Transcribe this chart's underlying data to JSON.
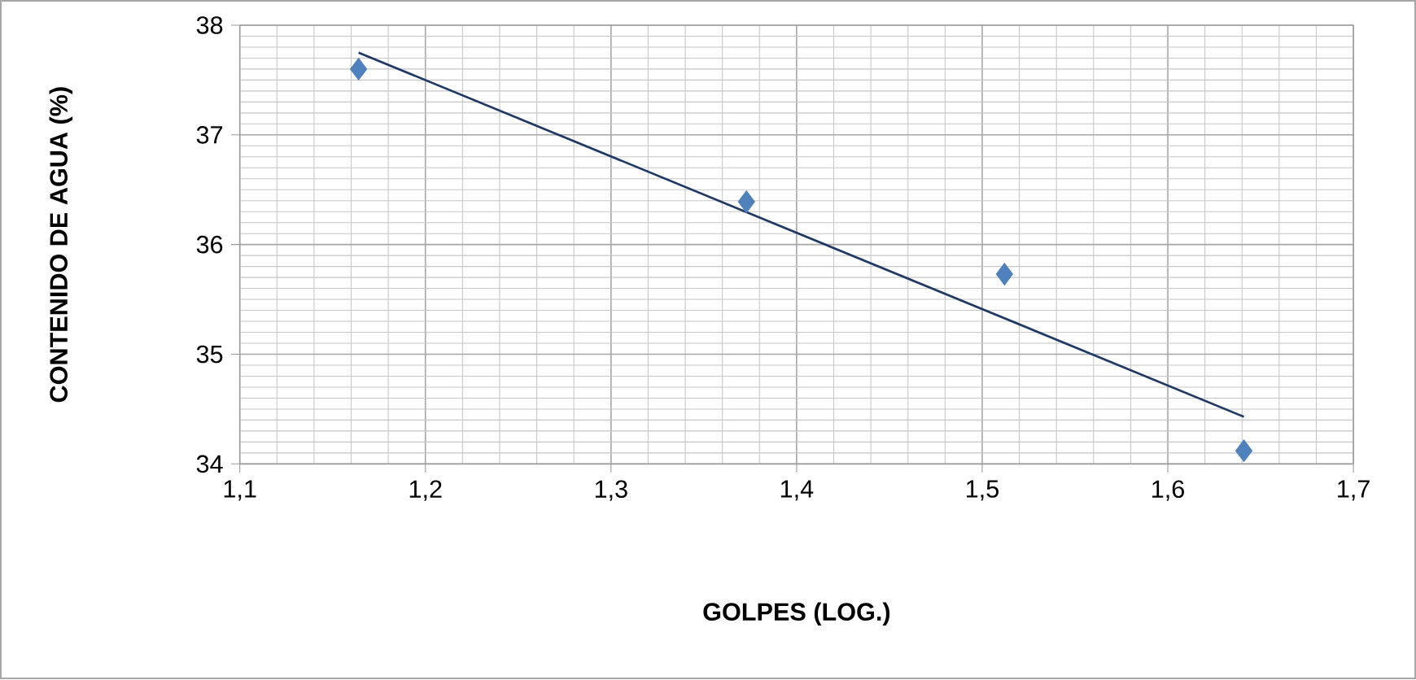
{
  "chart_data": {
    "type": "scatter",
    "xlabel": "GOLPES (LOG.)",
    "ylabel": "CONTENIDO DE AGUA (%)",
    "xlim": [
      1.1,
      1.7
    ],
    "ylim": [
      34,
      38
    ],
    "xticks": [
      {
        "value": 1.1,
        "label": "1,1"
      },
      {
        "value": 1.2,
        "label": "1,2"
      },
      {
        "value": 1.3,
        "label": "1,3"
      },
      {
        "value": 1.4,
        "label": "1,4"
      },
      {
        "value": 1.5,
        "label": "1,5"
      },
      {
        "value": 1.6,
        "label": "1,6"
      },
      {
        "value": 1.7,
        "label": "1,7"
      }
    ],
    "yticks": [
      34,
      35,
      36,
      37,
      38
    ],
    "grid": true,
    "marker": "diamond",
    "series": [
      {
        "color": "#4f81bd",
        "x": [
          1.164,
          1.373,
          1.512,
          1.641
        ],
        "values": [
          37.6,
          36.39,
          35.73,
          34.12
        ]
      },
      {
        "type": "line",
        "color": "#1f3864",
        "marker": "none",
        "x": [
          1.164,
          1.641
        ],
        "values": [
          37.75,
          34.43
        ]
      }
    ]
  }
}
